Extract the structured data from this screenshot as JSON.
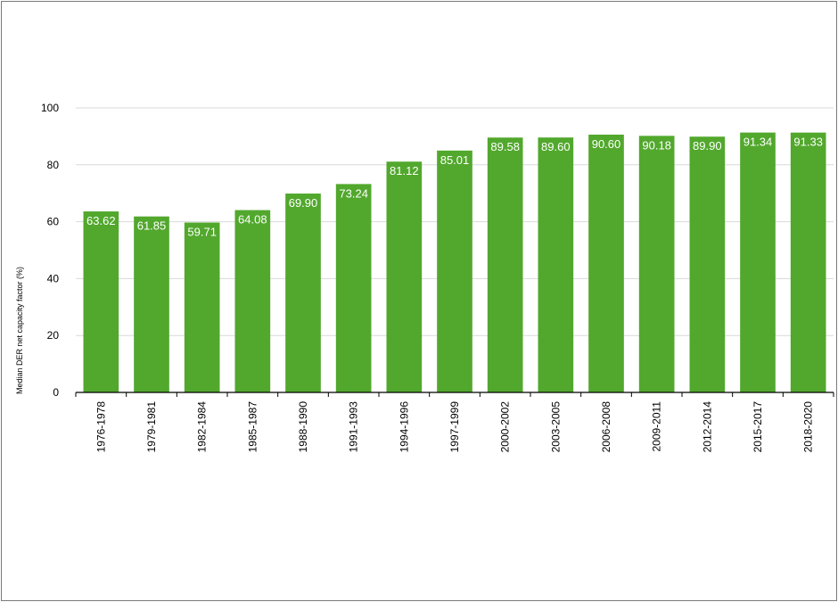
{
  "chart_data": {
    "type": "bar",
    "title": "",
    "xlabel": "",
    "ylabel": "Median DER net capacity factor (%)",
    "ylim": [
      0,
      100
    ],
    "yticks": [
      0,
      20,
      40,
      60,
      80,
      100
    ],
    "grid": true,
    "bar_color": "#52a82d",
    "gridline_color": "#d9d9d9",
    "categories": [
      "1976-1978",
      "1979-1981",
      "1982-1984",
      "1985-1987",
      "1988-1990",
      "1991-1993",
      "1994-1996",
      "1997-1999",
      "2000-2002",
      "2003-2005",
      "2006-2008",
      "2009-2011",
      "2012-2014",
      "2015-2017",
      "2018-2020"
    ],
    "values": [
      63.62,
      61.85,
      59.71,
      64.08,
      69.9,
      73.24,
      81.12,
      85.01,
      89.58,
      89.6,
      90.6,
      90.18,
      89.9,
      91.34,
      91.33
    ],
    "labels": [
      "63.62",
      "61.85",
      "59.71",
      "64.08",
      "69.90",
      "73.24",
      "81.12",
      "85.01",
      "89.58",
      "89.60",
      "90.60",
      "90.18",
      "89.90",
      "91.34",
      "91.33"
    ]
  }
}
